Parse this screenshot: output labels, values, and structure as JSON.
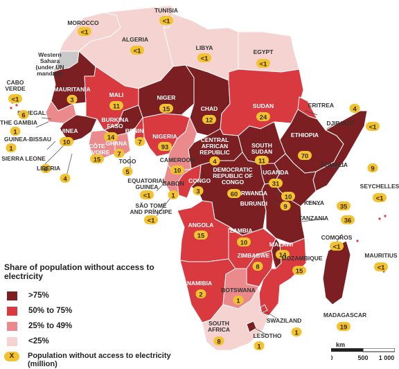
{
  "legend": {
    "title": "Share of population without access to electricity",
    "classes": [
      {
        "label": ">75%",
        "color": "#7b1f22"
      },
      {
        "label": "50% to 75%",
        "color": "#d83a3f"
      },
      {
        "label": "25% to 49%",
        "color": "#ea8a8c"
      },
      {
        "label": "<25%",
        "color": "#f4d3d0"
      }
    ],
    "bubble_symbol": "X",
    "bubble_text": "Population without access to electricity (million)"
  },
  "scale": {
    "unit": "km",
    "ticks": [
      "0",
      "500",
      "1 000"
    ]
  },
  "colors": {
    "bubble": "#f2c230",
    "unmandated": "#c9c9c9",
    "border": "#ffffff"
  },
  "regions": [
    {
      "name": "Western Sahara (under UN mandate)",
      "class": "na"
    },
    {
      "name": "Morocco",
      "class": "<25%"
    },
    {
      "name": "Algeria",
      "class": "<25%"
    },
    {
      "name": "Tunisia",
      "class": "<25%"
    },
    {
      "name": "Libya",
      "class": "<25%"
    },
    {
      "name": "Egypt",
      "class": "<25%"
    },
    {
      "name": "Mauritania",
      "class": ">75%"
    },
    {
      "name": "Mali",
      "class": "50% to 75%"
    },
    {
      "name": "Niger",
      "class": ">75%"
    },
    {
      "name": "Chad",
      "class": ">75%"
    },
    {
      "name": "Sudan",
      "class": "50% to 75%"
    },
    {
      "name": "Eritrea",
      "class": "50% to 75%"
    },
    {
      "name": "Ethiopia",
      "class": ">75%"
    },
    {
      "name": "Somalia",
      "class": ">75%"
    },
    {
      "name": "Nigeria",
      "class": "50% to 75%"
    },
    {
      "name": "Cameroon",
      "class": "25% to 49%"
    },
    {
      "name": "Central African Republic",
      "class": ">75%"
    },
    {
      "name": "South Sudan",
      "class": ">75%"
    },
    {
      "name": "Democratic Republic of Congo",
      "class": ">75%"
    },
    {
      "name": "Congo",
      "class": "50% to 75%"
    },
    {
      "name": "Gabon",
      "class": "25% to 49%"
    },
    {
      "name": "Uganda",
      "class": ">75%"
    },
    {
      "name": "Kenya",
      "class": ">75%"
    },
    {
      "name": "Tanzania",
      "class": ">75%"
    },
    {
      "name": "Angola",
      "class": "50% to 75%"
    },
    {
      "name": "Zambia",
      "class": "50% to 75%"
    },
    {
      "name": "Malawi",
      "class": ">75%"
    },
    {
      "name": "Mozambique",
      "class": "50% to 75%"
    },
    {
      "name": "Zimbabwe",
      "class": "50% to 75%"
    },
    {
      "name": "Namibia",
      "class": "50% to 75%"
    },
    {
      "name": "Botswana",
      "class": "25% to 49%"
    },
    {
      "name": "South Africa",
      "class": "<25%"
    },
    {
      "name": "Lesotho",
      "class": ">75%"
    },
    {
      "name": "Swaziland",
      "class": "50% to 75%"
    },
    {
      "name": "Madagascar",
      "class": ">75%"
    },
    {
      "name": "Senegal",
      "class": "25% to 49%"
    },
    {
      "name": "Guinea",
      "class": ">75%"
    },
    {
      "name": "Burkina Faso",
      "class": ">75%"
    },
    {
      "name": "Côte d'Ivoire",
      "class": "25% to 49%"
    },
    {
      "name": "Ghana",
      "class": "25% to 49%"
    },
    {
      "name": "Benin",
      "class": "50% to 75%"
    }
  ],
  "labels": [
    {
      "name": "MOROCCO",
      "value": "<1"
    },
    {
      "name": "ALGERIA",
      "value": "<1"
    },
    {
      "name": "TUNISIA",
      "value": "<1"
    },
    {
      "name": "LIBYA",
      "value": "<1"
    },
    {
      "name": "EGYPT",
      "value": "<1"
    },
    {
      "name": "Western Sahara (under UN mandate)",
      "value": ""
    },
    {
      "name": "CABO VERDE",
      "value": "<1"
    },
    {
      "name": "MAURITANIA",
      "value": "3"
    },
    {
      "name": "MALI",
      "value": "11"
    },
    {
      "name": "NIGER",
      "value": "15"
    },
    {
      "name": "CHAD",
      "value": "12"
    },
    {
      "name": "SUDAN",
      "value": "24"
    },
    {
      "name": "ERITREA",
      "value": "4"
    },
    {
      "name": "DJIBOUTI",
      "value": "<1"
    },
    {
      "name": "SENEGAL",
      "value": "6"
    },
    {
      "name": "THE GAMBIA",
      "value": "1"
    },
    {
      "name": "GUINEA-BISSAU",
      "value": "1"
    },
    {
      "name": "GUINEA",
      "value": "10"
    },
    {
      "name": "BURKINA FASO",
      "value": "14"
    },
    {
      "name": "BENIN",
      "value": "7"
    },
    {
      "name": "NIGERIA",
      "value": "93"
    },
    {
      "name": "CÔTE D'IVOIRE",
      "value": "15"
    },
    {
      "name": "GHANA",
      "value": "7"
    },
    {
      "name": "SIERRA LEONE",
      "value": "6"
    },
    {
      "name": "LIBERIA",
      "value": "4"
    },
    {
      "name": "TOGO",
      "value": "5"
    },
    {
      "name": "CENTRAL AFRICAN REPUBLIC",
      "value": "4"
    },
    {
      "name": "SOUTH SUDAN",
      "value": "11"
    },
    {
      "name": "ETHIOPIA",
      "value": "70"
    },
    {
      "name": "SOMALIA",
      "value": "9"
    },
    {
      "name": "CAMEROON",
      "value": "10"
    },
    {
      "name": "EQUATORIAL GUINEA",
      "value": "<1"
    },
    {
      "name": "GABON",
      "value": "1"
    },
    {
      "name": "CONGO",
      "value": "3"
    },
    {
      "name": "UGANDA",
      "value": "31"
    },
    {
      "name": "DEMOCRATIC REPUBLIC OF CONGO",
      "value": "60"
    },
    {
      "name": "RWANDA",
      "value": "10"
    },
    {
      "name": "BURUNDI",
      "value": "9"
    },
    {
      "name": "KENYA",
      "value": "35"
    },
    {
      "name": "SEYCHELLES",
      "value": "<1"
    },
    {
      "name": "TANZANIA",
      "value": "36"
    },
    {
      "name": "SÃO TOMÉ AND PRÍNCIPE",
      "value": "<1"
    },
    {
      "name": "ANGOLA",
      "value": "15"
    },
    {
      "name": "ZAMBIA",
      "value": "10"
    },
    {
      "name": "MALAWI",
      "value": "14"
    },
    {
      "name": "COMOROS",
      "value": "<1"
    },
    {
      "name": "MAURITIUS",
      "value": "<1"
    },
    {
      "name": "ZIMBABWE",
      "value": "8"
    },
    {
      "name": "MOZAMBIQUE",
      "value": "15"
    },
    {
      "name": "NAMIBIA",
      "value": "2"
    },
    {
      "name": "BOTSWANA",
      "value": "1"
    },
    {
      "name": "MADAGASCAR",
      "value": "19"
    },
    {
      "name": "SWAZILAND",
      "value": "1"
    },
    {
      "name": "SOUTH AFRICA",
      "value": "8"
    },
    {
      "name": "LESOTHO",
      "value": "1"
    }
  ]
}
